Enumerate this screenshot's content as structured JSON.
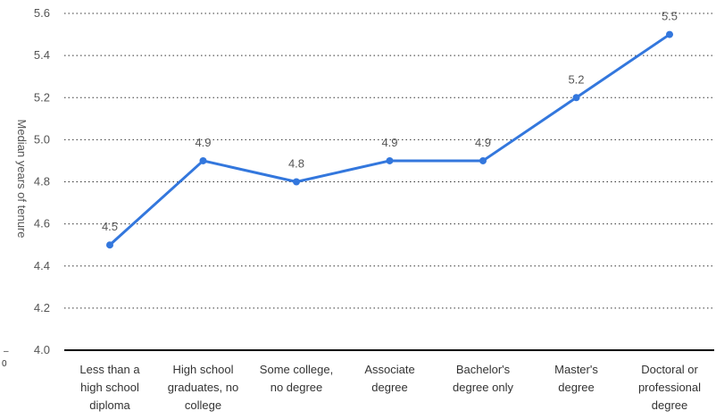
{
  "chart_data": {
    "type": "line",
    "categories": [
      [
        "Less than a",
        "high school",
        "diploma"
      ],
      [
        "High school",
        "graduates, no",
        "college"
      ],
      [
        "Some college,",
        "no degree"
      ],
      [
        "Associate",
        "degree"
      ],
      [
        "Bachelor's",
        "degree only"
      ],
      [
        "Master's",
        "degree"
      ],
      [
        "Doctoral or",
        "professional",
        "degree"
      ]
    ],
    "values": [
      4.5,
      4.9,
      4.8,
      4.9,
      4.9,
      5.2,
      5.5
    ],
    "data_labels": [
      "4.5",
      "4.9",
      "4.8",
      "4.9",
      "4.9",
      "5.2",
      "5.5"
    ],
    "ylabel": "Median years of tenure",
    "ylim": [
      4.0,
      5.6
    ],
    "yticks": [
      "4.0",
      "4.2",
      "4.4",
      "4.6",
      "4.8",
      "5.0",
      "5.2",
      "5.4",
      "5.6"
    ],
    "grid": true,
    "legend": "none",
    "line_color": "#3377DD",
    "side_marks": [
      "–",
      "0"
    ]
  }
}
